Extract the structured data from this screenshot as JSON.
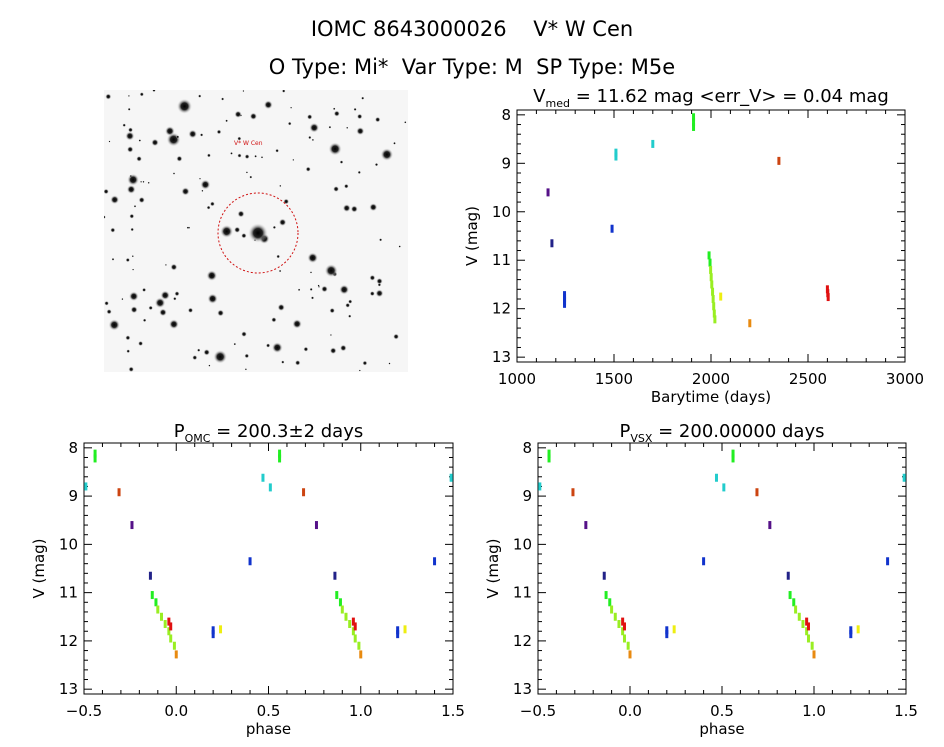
{
  "header": {
    "line1": "IOMC 8643000026    V* W Cen",
    "line2": "O Type: Mi*  Var Type: M  SP Type: M5e"
  },
  "image_panel": {
    "target_label": "V* W Cen"
  },
  "colors": {
    "red": "#e01010",
    "green": "#22ee22",
    "lime": "#99ee22",
    "yellow": "#eeee11",
    "orange": "#e88a10",
    "blue": "#1133cc",
    "navy": "#222288",
    "cyan": "#22cccc",
    "purple": "#551188",
    "brown": "#cc4411",
    "dark": "#333399"
  },
  "chart_data": [
    {
      "id": "lightcurve",
      "type": "scatter",
      "title_main": "V",
      "title_sub": "med",
      "title_rest": " = 11.62 mag <err_V> = 0.04 mag",
      "xlabel": "Barytime (days)",
      "ylabel": "V (mag)",
      "xlim": [
        1000,
        3000
      ],
      "ylim": [
        13.1,
        7.9
      ],
      "xticks": [
        1000,
        1500,
        2000,
        2500,
        3000
      ],
      "xtick_labels": [
        "1000",
        "1500",
        "2000",
        "2500",
        "3000"
      ],
      "yticks": [
        8,
        9,
        10,
        11,
        12,
        13
      ],
      "ytick_labels": [
        "8",
        "9",
        "10",
        "11",
        "12",
        "13"
      ],
      "points": [
        {
          "x": 1160,
          "y": 9.6,
          "c": "purple"
        },
        {
          "x": 1180,
          "y": 10.65,
          "c": "navy"
        },
        {
          "x": 1245,
          "y": 11.72,
          "c": "blue"
        },
        {
          "x": 1245,
          "y": 11.78,
          "c": "blue"
        },
        {
          "x": 1245,
          "y": 11.84,
          "c": "blue"
        },
        {
          "x": 1245,
          "y": 11.9,
          "c": "blue"
        },
        {
          "x": 1490,
          "y": 10.35,
          "c": "blue"
        },
        {
          "x": 1510,
          "y": 8.78,
          "c": "cyan"
        },
        {
          "x": 1510,
          "y": 8.86,
          "c": "cyan"
        },
        {
          "x": 1700,
          "y": 8.6,
          "c": "cyan"
        },
        {
          "x": 1910,
          "y": 8.05,
          "c": "green"
        },
        {
          "x": 1910,
          "y": 8.15,
          "c": "green"
        },
        {
          "x": 1910,
          "y": 8.25,
          "c": "green"
        },
        {
          "x": 1990,
          "y": 10.9,
          "c": "green"
        },
        {
          "x": 1995,
          "y": 11.05,
          "c": "green"
        },
        {
          "x": 1998,
          "y": 11.2,
          "c": "lime"
        },
        {
          "x": 2001,
          "y": 11.35,
          "c": "lime"
        },
        {
          "x": 2004,
          "y": 11.5,
          "c": "lime"
        },
        {
          "x": 2008,
          "y": 11.65,
          "c": "lime"
        },
        {
          "x": 2011,
          "y": 11.8,
          "c": "lime"
        },
        {
          "x": 2014,
          "y": 11.95,
          "c": "lime"
        },
        {
          "x": 2017,
          "y": 12.1,
          "c": "lime"
        },
        {
          "x": 2020,
          "y": 12.22,
          "c": "lime"
        },
        {
          "x": 2050,
          "y": 11.75,
          "c": "yellow"
        },
        {
          "x": 2200,
          "y": 12.3,
          "c": "orange"
        },
        {
          "x": 2350,
          "y": 8.95,
          "c": "brown"
        },
        {
          "x": 2600,
          "y": 11.6,
          "c": "red"
        },
        {
          "x": 2602,
          "y": 11.68,
          "c": "red"
        },
        {
          "x": 2604,
          "y": 11.76,
          "c": "red"
        }
      ]
    },
    {
      "id": "phase_omc",
      "type": "scatter",
      "title_main": "P",
      "title_sub": "OMC",
      "title_rest": " = 200.3±2 days",
      "xlabel": "phase",
      "ylabel": "V (mag)",
      "xlim": [
        -0.5,
        1.5
      ],
      "ylim": [
        13.1,
        7.9
      ],
      "xticks": [
        -0.5,
        0,
        0.5,
        1,
        1.5
      ],
      "xtick_labels": [
        "−0.5",
        "0.0",
        "0.5",
        "1.0",
        "1.5"
      ],
      "yticks": [
        8,
        9,
        10,
        11,
        12,
        13
      ],
      "ytick_labels": [
        "8",
        "9",
        "10",
        "11",
        "12",
        "13"
      ],
      "points": [
        {
          "x": -0.44,
          "y": 8.12,
          "c": "green"
        },
        {
          "x": -0.44,
          "y": 8.22,
          "c": "green"
        },
        {
          "x": -0.49,
          "y": 8.8,
          "c": "cyan"
        },
        {
          "x": -0.31,
          "y": 8.92,
          "c": "brown"
        },
        {
          "x": -0.24,
          "y": 9.6,
          "c": "purple"
        },
        {
          "x": -0.14,
          "y": 10.65,
          "c": "navy"
        },
        {
          "x": -0.13,
          "y": 11.05,
          "c": "green"
        },
        {
          "x": -0.11,
          "y": 11.2,
          "c": "green"
        },
        {
          "x": -0.1,
          "y": 11.35,
          "c": "lime"
        },
        {
          "x": -0.08,
          "y": 11.5,
          "c": "lime"
        },
        {
          "x": -0.06,
          "y": 11.65,
          "c": "lime"
        },
        {
          "x": -0.04,
          "y": 11.8,
          "c": "lime"
        },
        {
          "x": -0.03,
          "y": 11.95,
          "c": "lime"
        },
        {
          "x": -0.01,
          "y": 12.1,
          "c": "lime"
        },
        {
          "x": 0.0,
          "y": 12.28,
          "c": "orange"
        },
        {
          "x": -0.04,
          "y": 11.6,
          "c": "red"
        },
        {
          "x": -0.03,
          "y": 11.7,
          "c": "red"
        },
        {
          "x": 0.2,
          "y": 11.78,
          "c": "blue"
        },
        {
          "x": 0.2,
          "y": 11.86,
          "c": "blue"
        },
        {
          "x": 0.24,
          "y": 11.76,
          "c": "yellow"
        },
        {
          "x": 0.4,
          "y": 10.35,
          "c": "blue"
        },
        {
          "x": 0.47,
          "y": 8.62,
          "c": "cyan"
        },
        {
          "x": 0.51,
          "y": 8.82,
          "c": "cyan"
        },
        {
          "x": 0.56,
          "y": 8.12,
          "c": "green"
        },
        {
          "x": 0.56,
          "y": 8.22,
          "c": "green"
        },
        {
          "x": 0.69,
          "y": 8.92,
          "c": "brown"
        },
        {
          "x": 0.76,
          "y": 9.6,
          "c": "purple"
        },
        {
          "x": 0.86,
          "y": 10.65,
          "c": "navy"
        },
        {
          "x": 0.87,
          "y": 11.05,
          "c": "green"
        },
        {
          "x": 0.89,
          "y": 11.2,
          "c": "green"
        },
        {
          "x": 0.9,
          "y": 11.35,
          "c": "lime"
        },
        {
          "x": 0.92,
          "y": 11.5,
          "c": "lime"
        },
        {
          "x": 0.94,
          "y": 11.65,
          "c": "lime"
        },
        {
          "x": 0.96,
          "y": 11.8,
          "c": "lime"
        },
        {
          "x": 0.97,
          "y": 11.95,
          "c": "lime"
        },
        {
          "x": 0.99,
          "y": 12.1,
          "c": "lime"
        },
        {
          "x": 1.0,
          "y": 12.28,
          "c": "orange"
        },
        {
          "x": 0.96,
          "y": 11.6,
          "c": "red"
        },
        {
          "x": 0.97,
          "y": 11.7,
          "c": "red"
        },
        {
          "x": 1.2,
          "y": 11.78,
          "c": "blue"
        },
        {
          "x": 1.2,
          "y": 11.86,
          "c": "blue"
        },
        {
          "x": 1.24,
          "y": 11.76,
          "c": "yellow"
        },
        {
          "x": 1.4,
          "y": 10.35,
          "c": "blue"
        },
        {
          "x": 1.49,
          "y": 8.62,
          "c": "cyan"
        }
      ]
    },
    {
      "id": "phase_vsx",
      "type": "scatter",
      "title_main": "P",
      "title_sub": "VSX",
      "title_rest": " = 200.00000 days",
      "xlabel": "phase",
      "ylabel": "V (mag)",
      "xlim": [
        -0.5,
        1.5
      ],
      "ylim": [
        13.1,
        7.9
      ],
      "xticks": [
        -0.5,
        0,
        0.5,
        1,
        1.5
      ],
      "xtick_labels": [
        "−0.5",
        "0.0",
        "0.5",
        "1.0",
        "1.5"
      ],
      "yticks": [
        8,
        9,
        10,
        11,
        12,
        13
      ],
      "ytick_labels": [
        "8",
        "9",
        "10",
        "11",
        "12",
        "13"
      ],
      "points": [
        {
          "x": -0.44,
          "y": 8.12,
          "c": "green"
        },
        {
          "x": -0.44,
          "y": 8.22,
          "c": "green"
        },
        {
          "x": -0.49,
          "y": 8.8,
          "c": "cyan"
        },
        {
          "x": -0.31,
          "y": 8.92,
          "c": "brown"
        },
        {
          "x": -0.24,
          "y": 9.6,
          "c": "purple"
        },
        {
          "x": -0.14,
          "y": 10.65,
          "c": "navy"
        },
        {
          "x": -0.13,
          "y": 11.05,
          "c": "green"
        },
        {
          "x": -0.11,
          "y": 11.2,
          "c": "green"
        },
        {
          "x": -0.1,
          "y": 11.35,
          "c": "lime"
        },
        {
          "x": -0.08,
          "y": 11.5,
          "c": "lime"
        },
        {
          "x": -0.06,
          "y": 11.65,
          "c": "lime"
        },
        {
          "x": -0.04,
          "y": 11.8,
          "c": "lime"
        },
        {
          "x": -0.03,
          "y": 11.95,
          "c": "lime"
        },
        {
          "x": -0.01,
          "y": 12.1,
          "c": "lime"
        },
        {
          "x": 0.0,
          "y": 12.28,
          "c": "orange"
        },
        {
          "x": -0.04,
          "y": 11.6,
          "c": "red"
        },
        {
          "x": -0.03,
          "y": 11.7,
          "c": "red"
        },
        {
          "x": 0.2,
          "y": 11.78,
          "c": "blue"
        },
        {
          "x": 0.2,
          "y": 11.86,
          "c": "blue"
        },
        {
          "x": 0.24,
          "y": 11.76,
          "c": "yellow"
        },
        {
          "x": 0.4,
          "y": 10.35,
          "c": "blue"
        },
        {
          "x": 0.47,
          "y": 8.62,
          "c": "cyan"
        },
        {
          "x": 0.51,
          "y": 8.82,
          "c": "cyan"
        },
        {
          "x": 0.56,
          "y": 8.12,
          "c": "green"
        },
        {
          "x": 0.56,
          "y": 8.22,
          "c": "green"
        },
        {
          "x": 0.69,
          "y": 8.92,
          "c": "brown"
        },
        {
          "x": 0.76,
          "y": 9.6,
          "c": "purple"
        },
        {
          "x": 0.86,
          "y": 10.65,
          "c": "navy"
        },
        {
          "x": 0.87,
          "y": 11.05,
          "c": "green"
        },
        {
          "x": 0.89,
          "y": 11.2,
          "c": "green"
        },
        {
          "x": 0.9,
          "y": 11.35,
          "c": "lime"
        },
        {
          "x": 0.92,
          "y": 11.5,
          "c": "lime"
        },
        {
          "x": 0.94,
          "y": 11.65,
          "c": "lime"
        },
        {
          "x": 0.96,
          "y": 11.8,
          "c": "lime"
        },
        {
          "x": 0.97,
          "y": 11.95,
          "c": "lime"
        },
        {
          "x": 0.99,
          "y": 12.1,
          "c": "lime"
        },
        {
          "x": 1.0,
          "y": 12.28,
          "c": "orange"
        },
        {
          "x": 0.96,
          "y": 11.6,
          "c": "red"
        },
        {
          "x": 0.97,
          "y": 11.7,
          "c": "red"
        },
        {
          "x": 1.2,
          "y": 11.78,
          "c": "blue"
        },
        {
          "x": 1.2,
          "y": 11.86,
          "c": "blue"
        },
        {
          "x": 1.24,
          "y": 11.76,
          "c": "yellow"
        },
        {
          "x": 1.4,
          "y": 10.35,
          "c": "blue"
        },
        {
          "x": 1.49,
          "y": 8.62,
          "c": "cyan"
        }
      ]
    }
  ]
}
